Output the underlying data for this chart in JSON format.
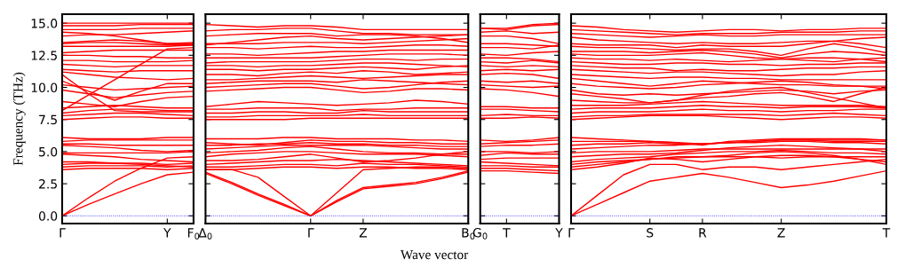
{
  "chart_data": [
    {
      "type": "line",
      "color": "#ff0000",
      "ylabel": "Frequency (THz)",
      "line_style": "solid",
      "categories": [
        "Γ",
        null,
        null,
        null,
        "Y",
        "F$_{0}$"
      ],
      "ylim": [
        -0.6,
        15.7
      ],
      "yticks": [
        {
          "value": 0,
          "label": "0.0"
        },
        {
          "value": 2.5,
          "label": "2.5"
        },
        {
          "value": 5,
          "label": "5.0"
        },
        {
          "value": 7.5,
          "label": "7.5"
        },
        {
          "value": 10,
          "label": "10.0"
        },
        {
          "value": 12.5,
          "label": "12.5"
        },
        {
          "value": 15,
          "label": "15.0"
        }
      ],
      "ref_lines": [
        {
          "axis": "y",
          "value": 0,
          "color": "#0000ff",
          "line_style": "dotted"
        }
      ],
      "series": [
        {
          "values": [
            0,
            0.9,
            1.7,
            2.5,
            3.2,
            3.4
          ]
        },
        {
          "values": [
            0,
            1.4,
            2.7,
            3.7,
            4.5,
            4.6
          ]
        },
        {
          "values": [
            3.6,
            3.7,
            3.7,
            3.7,
            3.6,
            3.7
          ]
        },
        {
          "values": [
            3.8,
            3.9,
            3.9,
            3.9,
            3.8,
            3.9
          ]
        },
        {
          "values": [
            4.0,
            4.1,
            4.1,
            4.1,
            4.0,
            4.1
          ]
        },
        {
          "values": [
            4.2,
            4.2,
            4.1,
            4.0,
            3.9,
            3.8
          ]
        },
        {
          "values": [
            4.8,
            4.7,
            4.6,
            4.4,
            4.3,
            4.2
          ]
        },
        {
          "values": [
            4.9,
            4.9,
            4.9,
            4.9,
            4.9,
            5.0
          ]
        },
        {
          "values": [
            5.5,
            5.4,
            5.3,
            5.1,
            5.0,
            5.1
          ]
        },
        {
          "values": [
            5.6,
            5.6,
            5.5,
            5.5,
            5.5,
            5.5
          ]
        },
        {
          "values": [
            5.8,
            5.9,
            5.9,
            5.9,
            5.9,
            5.9
          ]
        },
        {
          "values": [
            6.1,
            6.0,
            6.0,
            6.0,
            6.1,
            6.1
          ]
        },
        {
          "values": [
            7.5,
            7.6,
            7.7,
            7.7,
            7.6,
            7.6
          ]
        },
        {
          "values": [
            7.8,
            7.9,
            8.0,
            8.0,
            7.9,
            7.8
          ]
        },
        {
          "values": [
            8.0,
            8.2,
            8.3,
            8.3,
            8.2,
            8.2
          ]
        },
        {
          "values": [
            8.2,
            9.4,
            10.6,
            11.8,
            13.0,
            13.1
          ]
        },
        {
          "values": [
            8.4,
            8.5,
            8.6,
            8.5,
            8.4,
            8.4
          ]
        },
        {
          "values": [
            8.9,
            8.7,
            8.5,
            8.9,
            9.2,
            9.3
          ]
        },
        {
          "values": [
            9.8,
            9.5,
            9.2,
            9.4,
            9.6,
            9.7
          ]
        },
        {
          "values": [
            10.2,
            10.0,
            9.8,
            9.9,
            10.0,
            10.1
          ]
        },
        {
          "values": [
            11.0,
            9.5,
            8.2,
            8.1,
            8.1,
            8.1
          ]
        },
        {
          "values": [
            10.5,
            9.7,
            9.0,
            9.7,
            10.3,
            10.3
          ]
        },
        {
          "values": [
            11.2,
            11.0,
            10.8,
            10.7,
            10.6,
            10.7
          ]
        },
        {
          "values": [
            11.4,
            11.3,
            11.2,
            11.3,
            11.3,
            11.3
          ]
        },
        {
          "values": [
            11.8,
            11.7,
            11.6,
            11.7,
            11.7,
            11.7
          ]
        },
        {
          "values": [
            12.1,
            12.1,
            12.0,
            12.0,
            12.0,
            12.1
          ]
        },
        {
          "values": [
            12.5,
            12.5,
            12.4,
            12.4,
            12.3,
            12.3
          ]
        },
        {
          "values": [
            12.7,
            12.8,
            12.9,
            12.9,
            12.9,
            12.9
          ]
        },
        {
          "values": [
            13.2,
            13.2,
            13.2,
            13.2,
            13.2,
            13.3
          ]
        },
        {
          "values": [
            13.4,
            13.5,
            13.5,
            13.4,
            13.3,
            13.3
          ]
        },
        {
          "values": [
            13.5,
            13.6,
            13.7,
            13.6,
            13.4,
            13.5
          ]
        },
        {
          "values": [
            14.0,
            14.1,
            14.1,
            14.2,
            14.3,
            14.4
          ]
        },
        {
          "values": [
            14.3,
            14.2,
            14.0,
            13.7,
            13.4,
            13.4
          ]
        },
        {
          "values": [
            14.5,
            14.5,
            14.5,
            14.6,
            14.6,
            14.6
          ]
        },
        {
          "values": [
            14.8,
            14.8,
            14.8,
            14.9,
            14.9,
            14.9
          ]
        },
        {
          "values": [
            15.0,
            15.0,
            15.0,
            15.0,
            15.0,
            15.0
          ]
        }
      ]
    },
    {
      "type": "line",
      "color": "#ff0000",
      "line_style": "solid",
      "tick_labels": "x",
      "xlabel": "Wave vector",
      "categories": [
        "Δ$_{0}$",
        null,
        null,
        null,
        "Γ",
        null,
        "Z",
        null,
        null,
        null,
        "B$_{0}$"
      ],
      "ylim": [
        -0.6,
        15.7
      ],
      "yticks": [
        0,
        2.5,
        5,
        7.5,
        10,
        12.5,
        15
      ],
      "ref_lines": [
        {
          "axis": "y",
          "value": 0,
          "color": "#0000ff",
          "line_style": "dotted"
        }
      ],
      "series": [
        {
          "values": [
            3.4,
            2.6,
            1.7,
            0.9,
            0,
            1.2,
            2.2,
            2.4,
            2.6,
            3.0,
            3.5
          ]
        },
        {
          "values": [
            3.3,
            2.5,
            1.6,
            0.8,
            0,
            1.1,
            2.1,
            2.3,
            2.5,
            2.9,
            3.4
          ]
        },
        {
          "values": [
            3.6,
            3.6,
            3.0,
            1.5,
            0,
            1.8,
            3.6,
            3.7,
            3.8,
            3.8,
            3.7
          ]
        },
        {
          "values": [
            3.6,
            3.6,
            3.7,
            3.8,
            3.8,
            3.7,
            3.8,
            3.8,
            3.7,
            3.7,
            3.6
          ]
        },
        {
          "values": [
            3.8,
            3.8,
            3.9,
            4.0,
            4.0,
            3.9,
            4.1,
            4.0,
            4.0,
            3.9,
            3.8
          ]
        },
        {
          "values": [
            4.0,
            4.1,
            4.2,
            4.3,
            4.3,
            4.4,
            4.3,
            4.2,
            4.1,
            4.0,
            3.9
          ]
        },
        {
          "values": [
            4.3,
            4.3,
            4.4,
            4.6,
            4.8,
            4.5,
            4.2,
            4.3,
            4.5,
            4.8,
            5.0
          ]
        },
        {
          "values": [
            4.6,
            4.8,
            4.9,
            5.0,
            5.0,
            4.9,
            4.8,
            4.8,
            4.8,
            4.7,
            4.6
          ]
        },
        {
          "values": [
            4.9,
            5.0,
            5.1,
            5.3,
            5.4,
            5.2,
            5.0,
            4.9,
            4.9,
            4.8,
            4.8
          ]
        },
        {
          "values": [
            5.2,
            5.3,
            5.4,
            5.5,
            5.5,
            5.5,
            5.5,
            5.4,
            5.3,
            5.2,
            5.2
          ]
        },
        {
          "values": [
            5.5,
            5.5,
            5.6,
            5.6,
            5.7,
            5.6,
            5.6,
            5.5,
            5.5,
            5.4,
            5.4
          ]
        },
        {
          "values": [
            5.7,
            5.6,
            5.5,
            5.7,
            5.9,
            5.8,
            5.8,
            5.7,
            5.7,
            5.6,
            5.6
          ]
        },
        {
          "values": [
            6.0,
            6.0,
            6.0,
            6.1,
            6.1,
            6.0,
            6.0,
            6.0,
            5.9,
            5.9,
            5.8
          ]
        },
        {
          "values": [
            7.5,
            7.5,
            7.5,
            7.5,
            7.6,
            7.6,
            7.6,
            7.6,
            7.6,
            7.6,
            7.6
          ]
        },
        {
          "values": [
            7.7,
            7.7,
            7.8,
            7.8,
            7.8,
            7.8,
            7.9,
            7.8,
            7.8,
            7.8,
            7.8
          ]
        },
        {
          "values": [
            8.0,
            8.0,
            8.1,
            8.1,
            8.0,
            8.0,
            8.2,
            8.1,
            8.1,
            8.1,
            8.1
          ]
        },
        {
          "values": [
            8.3,
            8.3,
            8.4,
            8.4,
            8.4,
            8.2,
            8.3,
            8.3,
            8.4,
            8.4,
            8.4
          ]
        },
        {
          "values": [
            8.5,
            8.7,
            8.9,
            8.8,
            8.7,
            8.6,
            8.7,
            8.8,
            9.0,
            8.9,
            8.7
          ]
        },
        {
          "values": [
            9.7,
            9.8,
            9.9,
            10.0,
            10.0,
            9.8,
            9.6,
            9.7,
            9.9,
            9.9,
            9.8
          ]
        },
        {
          "values": [
            10.0,
            10.1,
            10.2,
            10.3,
            10.3,
            10.1,
            9.9,
            10.0,
            10.2,
            10.4,
            10.5
          ]
        },
        {
          "values": [
            10.3,
            10.4,
            10.5,
            10.5,
            10.5,
            10.4,
            10.6,
            10.5,
            10.4,
            10.3,
            10.2
          ]
        },
        {
          "values": [
            10.6,
            10.6,
            10.7,
            10.8,
            10.9,
            10.8,
            10.7,
            10.8,
            10.9,
            11.0,
            11.0
          ]
        },
        {
          "values": [
            11.0,
            11.0,
            10.9,
            11.1,
            11.2,
            11.1,
            11.3,
            11.2,
            11.0,
            11.1,
            11.2
          ]
        },
        {
          "values": [
            11.4,
            11.4,
            11.3,
            11.4,
            11.4,
            11.5,
            11.6,
            11.5,
            11.4,
            11.6,
            11.7
          ]
        },
        {
          "values": [
            11.7,
            11.7,
            11.6,
            11.7,
            11.7,
            11.8,
            11.9,
            11.9,
            11.8,
            11.7,
            11.6
          ]
        },
        {
          "values": [
            11.9,
            12.0,
            12.0,
            12.0,
            12.0,
            12.1,
            12.2,
            12.2,
            12.1,
            12.2,
            12.2
          ]
        },
        {
          "values": [
            12.3,
            12.3,
            12.3,
            12.3,
            12.3,
            12.4,
            12.5,
            12.6,
            12.6,
            12.6,
            12.5
          ]
        },
        {
          "values": [
            12.6,
            12.6,
            12.5,
            12.6,
            12.7,
            12.8,
            12.8,
            12.9,
            12.9,
            12.9,
            12.9
          ]
        },
        {
          "values": [
            13.1,
            13.1,
            13.0,
            13.1,
            13.2,
            13.1,
            13.1,
            13.2,
            13.3,
            13.3,
            13.2
          ]
        },
        {
          "values": [
            13.4,
            13.4,
            13.4,
            13.5,
            13.5,
            13.5,
            13.4,
            13.5,
            13.6,
            13.7,
            13.8
          ]
        },
        {
          "values": [
            13.3,
            13.5,
            13.7,
            13.9,
            14.0,
            13.8,
            13.7,
            13.8,
            13.9,
            14.0,
            14.1
          ]
        },
        {
          "values": [
            14.0,
            14.1,
            14.2,
            14.2,
            14.2,
            14.0,
            14.1,
            14.1,
            14.0,
            13.8,
            13.5
          ]
        },
        {
          "values": [
            14.4,
            14.5,
            14.5,
            14.6,
            14.6,
            14.4,
            14.2,
            14.2,
            14.1,
            14.1,
            14.1
          ]
        },
        {
          "values": [
            14.9,
            14.8,
            14.7,
            14.8,
            14.8,
            14.7,
            14.5,
            14.5,
            14.5,
            14.5,
            14.5
          ]
        }
      ]
    },
    {
      "type": "line",
      "color": "#ff0000",
      "line_style": "solid",
      "tick_labels": "x",
      "categories": [
        "G$_{0}$",
        "T",
        null,
        "Y"
      ],
      "ylim": [
        -0.6,
        15.7
      ],
      "yticks": [
        0,
        2.5,
        5,
        7.5,
        10,
        12.5,
        15
      ],
      "ref_lines": [
        {
          "axis": "y",
          "value": 0,
          "color": "#0000ff",
          "line_style": "dotted"
        }
      ],
      "series": [
        {
          "values": [
            3.5,
            3.5,
            3.4,
            3.3
          ]
        },
        {
          "values": [
            3.7,
            3.7,
            3.6,
            3.5
          ]
        },
        {
          "values": [
            3.9,
            3.9,
            3.8,
            3.8
          ]
        },
        {
          "values": [
            4.2,
            4.1,
            4.0,
            3.9
          ]
        },
        {
          "values": [
            4.4,
            4.5,
            4.5,
            4.5
          ]
        },
        {
          "values": [
            4.7,
            4.9,
            4.8,
            4.8
          ]
        },
        {
          "values": [
            5.0,
            5.0,
            4.9,
            5.0
          ]
        },
        {
          "values": [
            5.4,
            5.5,
            5.5,
            5.6
          ]
        },
        {
          "values": [
            5.6,
            5.7,
            5.8,
            5.9
          ]
        },
        {
          "values": [
            5.9,
            5.8,
            5.9,
            6.1
          ]
        },
        {
          "values": [
            7.6,
            7.6,
            7.7,
            7.6
          ]
        },
        {
          "values": [
            7.8,
            7.9,
            7.8,
            7.8
          ]
        },
        {
          "values": [
            8.3,
            8.3,
            8.2,
            8.1
          ]
        },
        {
          "values": [
            8.5,
            8.5,
            8.4,
            8.4
          ]
        },
        {
          "values": [
            9.9,
            9.8,
            9.6,
            9.3
          ]
        },
        {
          "values": [
            10.2,
            10.1,
            10.0,
            10.1
          ]
        },
        {
          "values": [
            10.5,
            10.4,
            10.5,
            10.3
          ]
        },
        {
          "values": [
            11.0,
            11.1,
            11.0,
            10.7
          ]
        },
        {
          "values": [
            11.3,
            11.4,
            11.3,
            11.4
          ]
        },
        {
          "values": [
            11.7,
            11.6,
            11.7,
            11.6
          ]
        },
        {
          "values": [
            12.0,
            11.9,
            12.1,
            11.9
          ]
        },
        {
          "values": [
            12.3,
            12.3,
            12.2,
            12.0
          ]
        },
        {
          "values": [
            12.6,
            12.5,
            12.7,
            12.8
          ]
        },
        {
          "values": [
            13.1,
            13.1,
            13.0,
            13.3
          ]
        },
        {
          "values": [
            13.4,
            13.4,
            13.3,
            13.2
          ]
        },
        {
          "values": [
            14.0,
            14.0,
            13.8,
            13.4
          ]
        },
        {
          "values": [
            14.3,
            14.4,
            14.2,
            14.3
          ]
        },
        {
          "values": [
            14.6,
            14.5,
            14.8,
            14.9
          ]
        },
        {
          "values": [
            14.6,
            14.6,
            14.9,
            15.0
          ]
        }
      ]
    },
    {
      "type": "line",
      "color": "#ff0000",
      "line_style": "solid",
      "tick_labels": "x",
      "categories": [
        "Γ",
        null,
        null,
        "S",
        null,
        "R",
        null,
        null,
        "Z",
        null,
        null,
        null,
        "T"
      ],
      "ylim": [
        -0.6,
        15.7
      ],
      "yticks": [
        0,
        2.5,
        5,
        7.5,
        10,
        12.5,
        15
      ],
      "ref_lines": [
        {
          "axis": "y",
          "value": 0,
          "color": "#0000ff",
          "line_style": "dotted"
        }
      ],
      "series": [
        {
          "values": [
            0,
            0.9,
            1.8,
            2.7,
            3.0,
            3.3,
            3.0,
            2.6,
            2.2,
            2.4,
            2.7,
            3.1,
            3.5
          ]
        },
        {
          "values": [
            0,
            1.6,
            3.2,
            4.0,
            4.0,
            3.6,
            3.8,
            3.8,
            3.6,
            3.8,
            4.0,
            4.2,
            4.4
          ]
        },
        {
          "values": [
            3.6,
            3.8,
            4.1,
            4.5,
            4.4,
            4.2,
            4.4,
            4.6,
            4.7,
            4.7,
            4.6,
            4.4,
            4.2
          ]
        },
        {
          "values": [
            3.8,
            4.0,
            4.2,
            4.4,
            4.6,
            4.6,
            4.7,
            4.9,
            5.0,
            4.9,
            4.7,
            4.4,
            4.0
          ]
        },
        {
          "values": [
            4.0,
            4.2,
            4.3,
            4.4,
            4.5,
            4.6,
            4.6,
            4.6,
            4.5,
            4.6,
            4.6,
            4.6,
            4.6
          ]
        },
        {
          "values": [
            4.2,
            4.4,
            4.5,
            4.6,
            4.8,
            4.9,
            5.0,
            5.0,
            5.1,
            5.0,
            4.9,
            4.9,
            4.8
          ]
        },
        {
          "values": [
            4.6,
            4.7,
            4.8,
            4.8,
            4.9,
            5.1,
            5.3,
            5.4,
            5.5,
            5.4,
            5.3,
            5.2,
            5.0
          ]
        },
        {
          "values": [
            4.9,
            5.0,
            5.0,
            5.0,
            5.1,
            5.2,
            5.2,
            5.2,
            5.2,
            5.2,
            5.2,
            5.2,
            5.2
          ]
        },
        {
          "values": [
            5.2,
            5.3,
            5.4,
            5.5,
            5.5,
            5.6,
            5.7,
            5.7,
            5.8,
            5.8,
            5.7,
            5.7,
            5.6
          ]
        },
        {
          "values": [
            5.5,
            5.6,
            5.6,
            5.7,
            5.6,
            5.6,
            5.7,
            5.8,
            5.9,
            5.9,
            5.8,
            5.8,
            5.8
          ]
        },
        {
          "values": [
            5.8,
            5.8,
            5.8,
            5.8,
            5.7,
            5.6,
            5.7,
            5.8,
            5.9,
            5.9,
            5.9,
            5.9,
            5.9
          ]
        },
        {
          "values": [
            6.1,
            6.0,
            5.9,
            5.8,
            5.7,
            5.5,
            5.8,
            5.9,
            6.0,
            6.0,
            6.0,
            6.0,
            5.9
          ]
        },
        {
          "values": [
            7.5,
            7.6,
            7.7,
            7.8,
            7.8,
            7.8,
            7.7,
            7.6,
            7.5,
            7.6,
            7.7,
            7.7,
            7.6
          ]
        },
        {
          "values": [
            7.7,
            7.8,
            7.8,
            7.9,
            7.9,
            7.9,
            7.9,
            7.9,
            7.8,
            7.9,
            8.0,
            7.9,
            7.8
          ]
        },
        {
          "values": [
            8.0,
            8.1,
            8.1,
            8.1,
            8.2,
            8.3,
            8.2,
            8.2,
            8.1,
            8.2,
            8.2,
            8.3,
            8.3
          ]
        },
        {
          "values": [
            8.3,
            8.4,
            8.4,
            8.4,
            8.5,
            8.6,
            8.5,
            8.5,
            8.4,
            8.5,
            8.5,
            8.5,
            8.4
          ]
        },
        {
          "values": [
            8.6,
            8.6,
            8.6,
            8.7,
            8.8,
            8.9,
            8.8,
            8.7,
            8.6,
            8.6,
            8.6,
            8.6,
            8.5
          ]
        },
        {
          "values": [
            9.0,
            8.9,
            8.8,
            8.8,
            9.0,
            9.4,
            9.7,
            9.9,
            10.0,
            9.6,
            9.2,
            8.8,
            8.4
          ]
        },
        {
          "values": [
            9.5,
            9.3,
            9.1,
            8.8,
            9.0,
            9.2,
            9.3,
            9.5,
            9.6,
            9.3,
            8.9,
            9.5,
            10.0
          ]
        },
        {
          "values": [
            9.8,
            9.5,
            9.4,
            9.5,
            9.4,
            9.5,
            9.6,
            9.7,
            9.8,
            9.7,
            9.5,
            9.7,
            9.8
          ]
        },
        {
          "values": [
            10.3,
            10.1,
            10.0,
            9.9,
            10.0,
            10.2,
            10.3,
            10.4,
            10.5,
            10.4,
            10.2,
            10.1,
            9.9
          ]
        },
        {
          "values": [
            10.7,
            10.5,
            10.3,
            10.1,
            10.3,
            10.5,
            10.4,
            10.3,
            10.2,
            10.2,
            10.1,
            10.1,
            10.1
          ]
        },
        {
          "values": [
            11.0,
            10.9,
            10.8,
            10.7,
            10.8,
            10.8,
            10.7,
            10.7,
            10.6,
            10.6,
            10.6,
            10.6,
            10.6
          ]
        },
        {
          "values": [
            11.4,
            11.3,
            11.2,
            11.1,
            11.2,
            11.2,
            11.1,
            11.0,
            10.9,
            11.0,
            11.0,
            11.2,
            11.3
          ]
        },
        {
          "values": [
            11.7,
            11.6,
            11.5,
            11.5,
            11.3,
            11.4,
            11.3,
            11.3,
            11.4,
            11.5,
            11.5,
            11.6,
            11.6
          ]
        },
        {
          "values": [
            12.0,
            11.9,
            11.8,
            11.8,
            11.9,
            11.9,
            11.8,
            11.8,
            11.7,
            11.8,
            11.8,
            11.9,
            11.9
          ]
        },
        {
          "values": [
            12.3,
            12.2,
            12.2,
            12.1,
            12.2,
            12.1,
            12.0,
            12.1,
            12.2,
            12.3,
            12.3,
            12.2,
            12.0
          ]
        },
        {
          "values": [
            12.6,
            12.5,
            12.5,
            12.5,
            12.6,
            12.7,
            12.5,
            12.3,
            12.2,
            12.1,
            12.0,
            12.2,
            12.3
          ]
        },
        {
          "values": [
            12.8,
            12.8,
            12.8,
            12.7,
            12.8,
            12.9,
            12.8,
            12.6,
            12.3,
            12.6,
            12.8,
            12.7,
            12.5
          ]
        },
        {
          "values": [
            13.2,
            13.1,
            13.1,
            13.0,
            12.9,
            13.0,
            13.0,
            12.8,
            12.5,
            13.0,
            13.4,
            13.1,
            12.7
          ]
        },
        {
          "values": [
            13.4,
            13.3,
            13.3,
            13.3,
            13.1,
            13.3,
            13.2,
            13.2,
            13.2,
            13.4,
            13.6,
            13.4,
            13.1
          ]
        },
        {
          "values": [
            13.9,
            13.7,
            13.6,
            13.5,
            13.4,
            13.5,
            13.4,
            13.4,
            13.5,
            13.6,
            13.6,
            13.8,
            13.9
          ]
        },
        {
          "values": [
            14.2,
            14.1,
            14.0,
            13.9,
            14.0,
            14.1,
            14.0,
            14.0,
            14.1,
            14.1,
            14.1,
            14.1,
            14.1
          ]
        },
        {
          "values": [
            14.5,
            14.4,
            14.3,
            14.2,
            14.1,
            14.2,
            14.2,
            14.2,
            14.3,
            14.3,
            14.3,
            14.4,
            14.4
          ]
        },
        {
          "values": [
            14.8,
            14.7,
            14.5,
            14.4,
            14.3,
            14.4,
            14.5,
            14.5,
            14.4,
            14.5,
            14.5,
            14.6,
            14.6
          ]
        }
      ]
    }
  ]
}
